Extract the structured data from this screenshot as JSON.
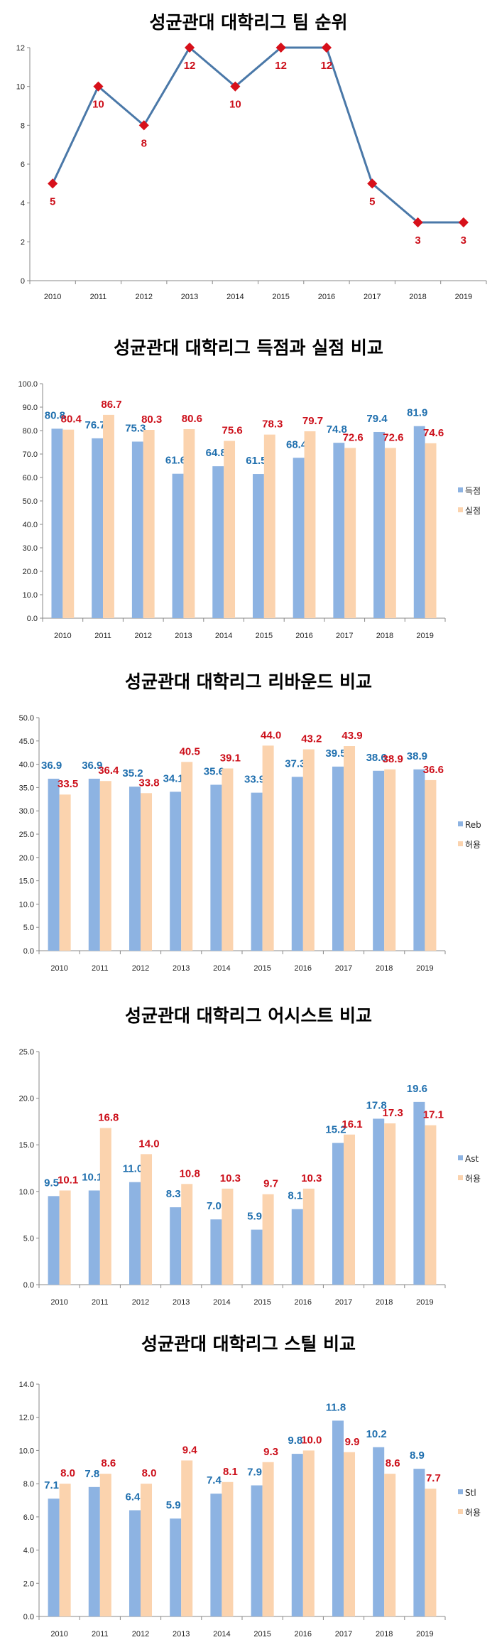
{
  "colors": {
    "blue_bar": "#8DB3E2",
    "orange_bar": "#FBD3AE",
    "blue_label": "#1F6FAE",
    "red_label": "#CC0F1A",
    "line": "#4A78A8",
    "marker": "#D7101A",
    "axis": "#888888"
  },
  "chart_data": [
    {
      "type": "line",
      "title": "성균관대 대학리그 팀 순위",
      "categories": [
        "2010",
        "2011",
        "2012",
        "2013",
        "2014",
        "2015",
        "2016",
        "2017",
        "2018",
        "2019"
      ],
      "values": [
        5,
        10,
        8,
        12,
        10,
        12,
        12,
        5,
        3,
        3
      ],
      "ylim": [
        0,
        12
      ],
      "yticks": [
        "0",
        "2",
        "4",
        "6",
        "8",
        "10",
        "12"
      ],
      "xlabel": "",
      "ylabel": "",
      "grid": false,
      "legend": "none"
    },
    {
      "type": "bar",
      "title": "성균관대 대학리그 득점과 실점 비교",
      "categories": [
        "2010",
        "2011",
        "2012",
        "2013",
        "2014",
        "2015",
        "2016",
        "2017",
        "2018",
        "2019"
      ],
      "series": [
        {
          "name": "득점",
          "values": [
            80.8,
            76.7,
            75.3,
            61.6,
            64.8,
            61.5,
            68.4,
            74.8,
            79.4,
            81.9
          ]
        },
        {
          "name": "실점",
          "values": [
            80.4,
            86.7,
            80.3,
            80.6,
            75.6,
            78.3,
            79.7,
            72.6,
            72.6,
            74.6
          ]
        }
      ],
      "ylim": [
        0,
        100
      ],
      "yticks": [
        "0.0",
        "10.0",
        "20.0",
        "30.0",
        "40.0",
        "50.0",
        "60.0",
        "70.0",
        "80.0",
        "90.0",
        "100.0"
      ],
      "grid": false,
      "legend": "right"
    },
    {
      "type": "bar",
      "title": "성균관대 대학리그 리바운드 비교",
      "categories": [
        "2010",
        "2011",
        "2012",
        "2013",
        "2014",
        "2015",
        "2016",
        "2017",
        "2018",
        "2019"
      ],
      "series": [
        {
          "name": "Reb",
          "values": [
            36.9,
            36.9,
            35.2,
            34.1,
            35.6,
            33.9,
            37.3,
            39.5,
            38.6,
            38.9
          ]
        },
        {
          "name": "허용",
          "values": [
            33.5,
            36.4,
            33.8,
            40.5,
            39.1,
            44.0,
            43.2,
            43.9,
            38.9,
            36.6
          ]
        }
      ],
      "ylim": [
        0,
        50
      ],
      "yticks": [
        "0.0",
        "5.0",
        "10.0",
        "15.0",
        "20.0",
        "25.0",
        "30.0",
        "35.0",
        "40.0",
        "45.0",
        "50.0"
      ],
      "grid": false,
      "legend": "right"
    },
    {
      "type": "bar",
      "title": "성균관대 대학리그 어시스트 비교",
      "categories": [
        "2010",
        "2011",
        "2012",
        "2013",
        "2014",
        "2015",
        "2016",
        "2017",
        "2018",
        "2019"
      ],
      "series": [
        {
          "name": "Ast",
          "values": [
            9.5,
            10.1,
            11.0,
            8.3,
            7.0,
            5.9,
            8.1,
            15.2,
            17.8,
            19.6
          ]
        },
        {
          "name": "허용",
          "values": [
            10.1,
            16.8,
            14.0,
            10.8,
            10.3,
            9.7,
            10.3,
            16.1,
            17.3,
            17.1
          ]
        }
      ],
      "ylim": [
        0,
        25
      ],
      "yticks": [
        "0.0",
        "5.0",
        "10.0",
        "15.0",
        "20.0",
        "25.0"
      ],
      "grid": false,
      "legend": "right"
    },
    {
      "type": "bar",
      "title": "성균관대 대학리그 스틸 비교",
      "categories": [
        "2010",
        "2011",
        "2012",
        "2013",
        "2014",
        "2015",
        "2016",
        "2017",
        "2018",
        "2019"
      ],
      "series": [
        {
          "name": "Stl",
          "values": [
            7.1,
            7.8,
            6.4,
            5.9,
            7.4,
            7.9,
            9.8,
            11.8,
            10.2,
            8.9
          ]
        },
        {
          "name": "허용",
          "values": [
            8.0,
            8.6,
            8.0,
            9.4,
            8.1,
            9.3,
            10.0,
            9.9,
            8.6,
            7.7
          ]
        }
      ],
      "ylim": [
        0,
        14
      ],
      "yticks": [
        "0.0",
        "2.0",
        "4.0",
        "6.0",
        "8.0",
        "10.0",
        "12.0",
        "14.0"
      ],
      "grid": false,
      "legend": "right"
    }
  ]
}
